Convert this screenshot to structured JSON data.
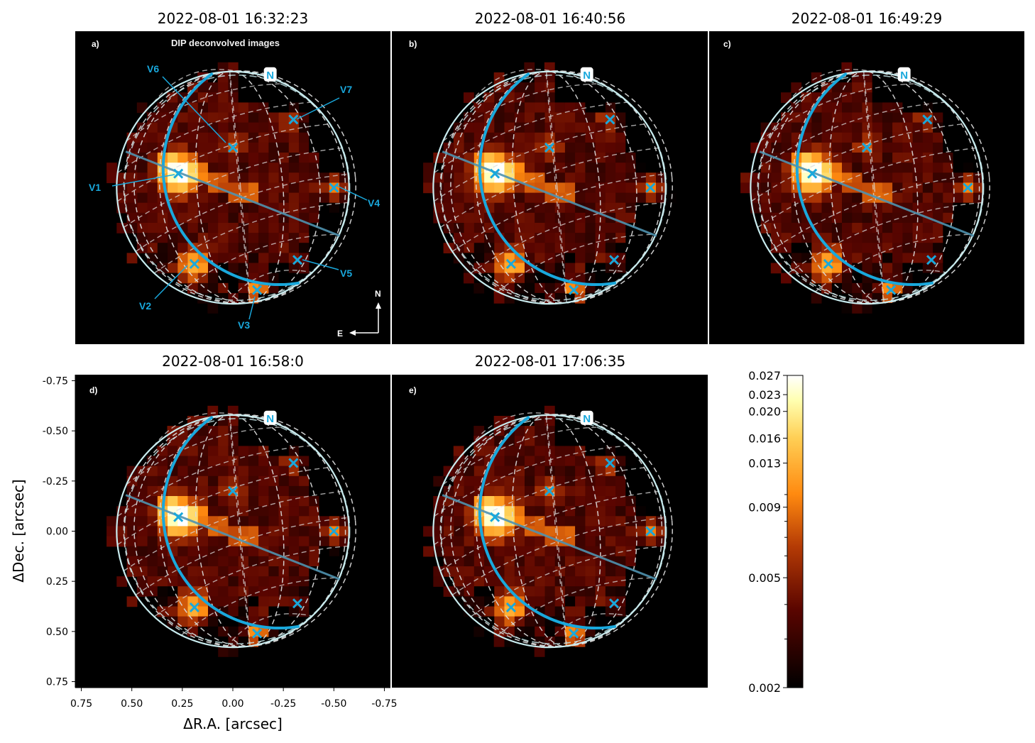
{
  "chart_data": {
    "type": "heatmap",
    "header": "DIP deconvolved images",
    "xlabel": "ΔR.A. [arcsec]",
    "ylabel": "ΔDec. [arcsec]",
    "xlim": [
      0.78,
      -0.78
    ],
    "ylim": [
      0.78,
      -0.78
    ],
    "x_ticks": [
      "0.75",
      "0.50",
      "0.25",
      "0.00",
      "-0.25",
      "-0.50",
      "-0.75"
    ],
    "x_tick_values": [
      0.75,
      0.5,
      0.25,
      0.0,
      -0.25,
      -0.5,
      -0.75
    ],
    "y_ticks": [
      "-0.75",
      "-0.50",
      "-0.25",
      "0.00",
      "0.25",
      "0.50",
      "0.75"
    ],
    "y_tick_values": [
      -0.75,
      -0.5,
      -0.25,
      0.0,
      0.25,
      0.5,
      0.75
    ],
    "colorbar": {
      "scale": "log",
      "min": 0.002,
      "max": 0.027,
      "tick_labels": [
        "0.027",
        "0.023",
        "0.020",
        "0.016",
        "0.013",
        "0.009",
        "0.005",
        "0.002"
      ],
      "tick_values": [
        0.027,
        0.023,
        0.02,
        0.016,
        0.013,
        0.009,
        0.005,
        0.002
      ],
      "colormap": "afmhot"
    },
    "disk": {
      "center": [
        0.0,
        0.0
      ],
      "radius_arcsec": 0.575
    },
    "compass": {
      "north": "N",
      "east": "E"
    },
    "north_pole_marker": "N",
    "panels": [
      {
        "letter": "a)",
        "title": "2022-08-01 16:32:23"
      },
      {
        "letter": "b)",
        "title": "2022-08-01 16:40:56"
      },
      {
        "letter": "c)",
        "title": "2022-08-01 16:49:29"
      },
      {
        "letter": "d)",
        "title": "2022-08-01 16:58:0"
      },
      {
        "letter": "e)",
        "title": "2022-08-01 17:06:35"
      }
    ],
    "volcanoes": [
      {
        "name": "V1",
        "ra": 0.27,
        "dec": -0.07
      },
      {
        "name": "V2",
        "ra": 0.19,
        "dec": 0.38
      },
      {
        "name": "V3",
        "ra": -0.12,
        "dec": 0.51
      },
      {
        "name": "V4",
        "ra": -0.5,
        "dec": 0.0
      },
      {
        "name": "V5",
        "ra": -0.32,
        "dec": 0.36
      },
      {
        "name": "V6",
        "ra": 0.0,
        "dec": -0.2
      },
      {
        "name": "V7",
        "ra": -0.3,
        "dec": -0.34
      }
    ]
  },
  "colors": {
    "accent": "#19a8dc",
    "background": "#000000",
    "grid": "#d9d9d9",
    "limb": "#c9ecef",
    "line": "#4f93b0"
  }
}
